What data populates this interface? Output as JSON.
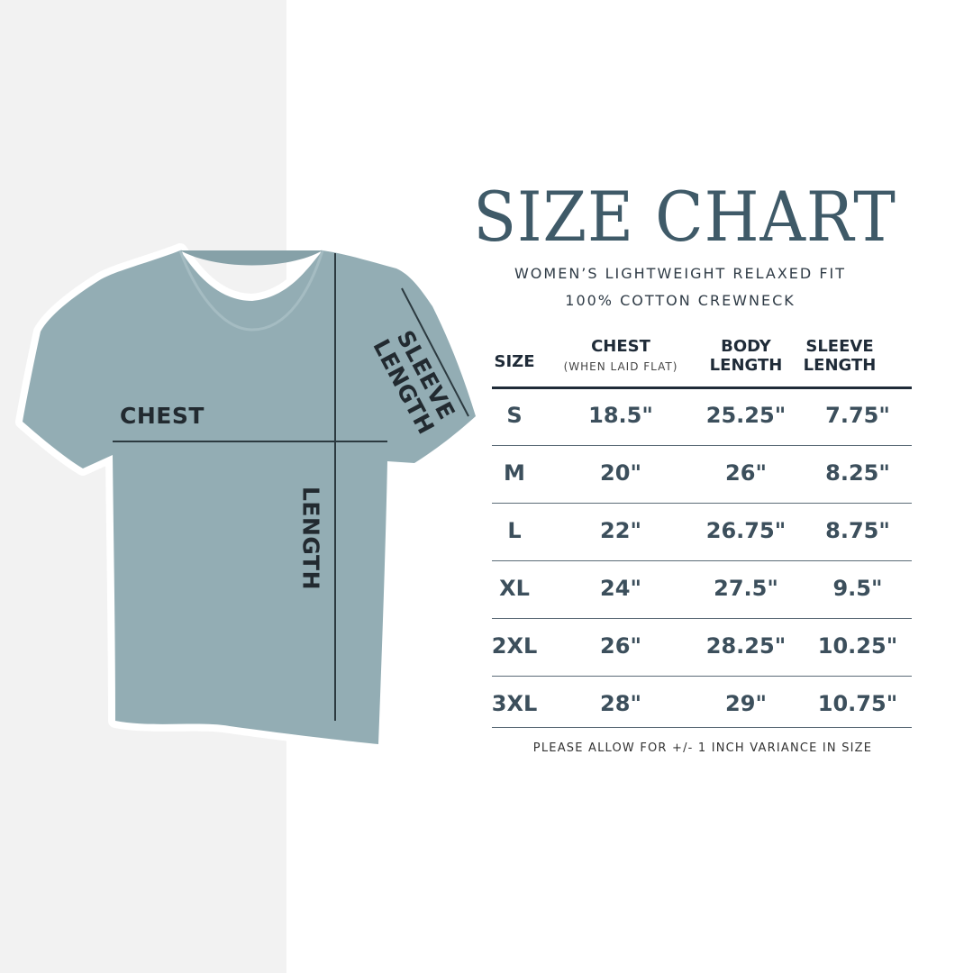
{
  "title": "SIZE CHART",
  "subtitle_line1": "WOMEN’S LIGHTWEIGHT RELAXED FIT",
  "subtitle_line2": "100% COTTON CREWNECK",
  "colors": {
    "title": "#3f5a68",
    "shirt": "#93adb4",
    "left_background": "#f2f2f2",
    "table_text": "#3c4f5c",
    "header_text": "#1f2b38"
  },
  "shirt_labels": {
    "chest": "CHEST",
    "length": "LENGTH",
    "sleeve_line1": "SLEEVE",
    "sleeve_line2": "LENGTH"
  },
  "table": {
    "headers": {
      "size": "SIZE",
      "chest": "CHEST",
      "chest_note": "(WHEN LAID FLAT)",
      "body1": "BODY",
      "body2": "LENGTH",
      "sleeve1": "SLEEVE",
      "sleeve2": "LENGTH"
    },
    "rows": [
      {
        "size": "S",
        "chest": "18.5\"",
        "body": "25.25\"",
        "sleeve": "7.75\""
      },
      {
        "size": "M",
        "chest": "20\"",
        "body": "26\"",
        "sleeve": "8.25\""
      },
      {
        "size": "L",
        "chest": "22\"",
        "body": "26.75\"",
        "sleeve": "8.75\""
      },
      {
        "size": "XL",
        "chest": "24\"",
        "body": "27.5\"",
        "sleeve": "9.5\""
      },
      {
        "size": "2XL",
        "chest": "26\"",
        "body": "28.25\"",
        "sleeve": "10.25\""
      },
      {
        "size": "3XL",
        "chest": "28\"",
        "body": "29\"",
        "sleeve": "10.75\""
      }
    ]
  },
  "footnote": "PLEASE ALLOW FOR +/- 1 INCH VARIANCE IN SIZE"
}
